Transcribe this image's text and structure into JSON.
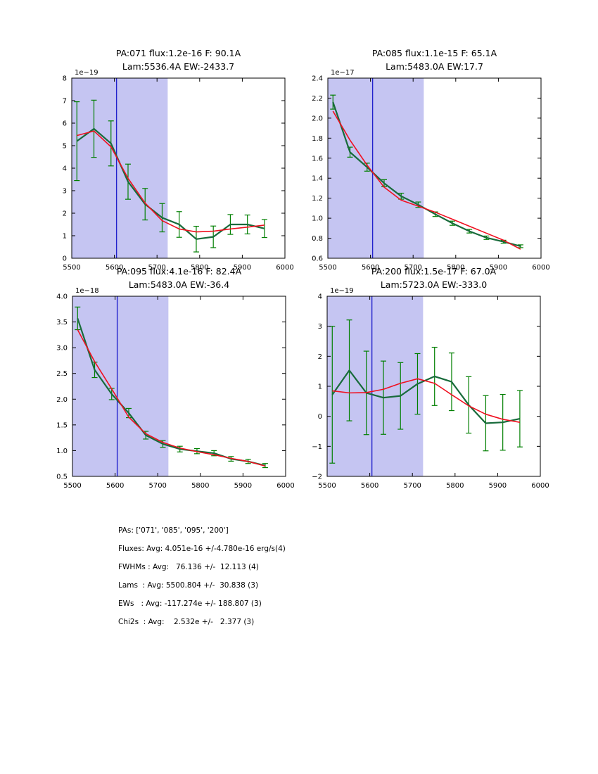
{
  "colors": {
    "background": "#ffffff",
    "band": "#c5c5f2",
    "vline": "#2222cc",
    "errorbar": "#007f00",
    "data_line": "#186b3b",
    "fit_line": "#f01020",
    "axis": "#000000"
  },
  "chart_data": [
    {
      "type": "line",
      "title_line1": "PA:071 flux:1.2e-16 F: 90.1A",
      "title_line2": "Lam:5536.4A EW:-2433.7",
      "offset_label": "1e−19",
      "xlim": [
        5500,
        6000
      ],
      "ylim": [
        0,
        8
      ],
      "band": [
        5500,
        5725
      ],
      "vline": 5605,
      "xticks": {
        "values": [
          5500,
          5600,
          5700,
          5800,
          5900,
          6000
        ],
        "labels": [
          "5500",
          "5600",
          "5700",
          "5800",
          "5900",
          "6000"
        ]
      },
      "yticks": {
        "values": [
          0,
          1,
          2,
          3,
          4,
          5,
          6,
          7,
          8
        ],
        "labels": [
          "0",
          "1",
          "2",
          "3",
          "4",
          "5",
          "6",
          "7",
          "8"
        ]
      },
      "x": [
        5512,
        5552,
        5592,
        5632,
        5672,
        5712,
        5752,
        5792,
        5832,
        5872,
        5912,
        5952
      ],
      "series": [
        {
          "name": "data",
          "values": [
            5.2,
            5.75,
            5.1,
            3.4,
            2.4,
            1.8,
            1.5,
            0.85,
            0.95,
            1.5,
            1.5,
            1.32
          ],
          "errors": [
            1.75,
            1.27,
            1.0,
            0.78,
            0.7,
            0.63,
            0.57,
            0.57,
            0.48,
            0.44,
            0.42,
            0.4
          ]
        },
        {
          "name": "fit",
          "values": [
            5.45,
            5.65,
            4.95,
            3.55,
            2.45,
            1.67,
            1.3,
            1.17,
            1.2,
            1.3,
            1.38,
            1.47
          ]
        }
      ]
    },
    {
      "type": "line",
      "title_line1": "PA:085 flux:1.1e-15 F: 65.1A",
      "title_line2": "Lam:5483.0A EW:17.7",
      "offset_label": "1e−17",
      "xlim": [
        5500,
        6000
      ],
      "ylim": [
        0.6,
        2.4
      ],
      "band": [
        5500,
        5725
      ],
      "vline": 5605,
      "xticks": {
        "values": [
          5500,
          5600,
          5700,
          5800,
          5900,
          6000
        ],
        "labels": [
          "5500",
          "5600",
          "5700",
          "5800",
          "5900",
          "6000"
        ]
      },
      "yticks": {
        "values": [
          0.6,
          0.8,
          1.0,
          1.2,
          1.4,
          1.6,
          1.8,
          2.0,
          2.2,
          2.4
        ],
        "labels": [
          "0.6",
          "0.8",
          "1.0",
          "1.2",
          "1.4",
          "1.6",
          "1.8",
          "2.0",
          "2.2",
          "2.4"
        ]
      },
      "x": [
        5512,
        5552,
        5592,
        5632,
        5672,
        5712,
        5752,
        5792,
        5832,
        5872,
        5912,
        5952
      ],
      "series": [
        {
          "name": "data",
          "values": [
            2.16,
            1.66,
            1.51,
            1.35,
            1.22,
            1.135,
            1.04,
            0.95,
            0.87,
            0.805,
            0.765,
            0.72
          ],
          "errors": [
            0.07,
            0.05,
            0.04,
            0.035,
            0.03,
            0.027,
            0.023,
            0.021,
            0.018,
            0.017,
            0.015,
            0.014
          ]
        },
        {
          "name": "fit",
          "values": [
            2.07,
            1.78,
            1.53,
            1.31,
            1.18,
            1.12,
            1.06,
            0.99,
            0.92,
            0.85,
            0.78,
            0.69
          ]
        }
      ]
    },
    {
      "type": "line",
      "title_line1": "PA:095 flux:4.1e-16 F: 82.4A",
      "title_line2": "Lam:5483.0A EW:-36.4",
      "offset_label": "1e−18",
      "xlim": [
        5500,
        6000
      ],
      "ylim": [
        0.5,
        4.0
      ],
      "band": [
        5500,
        5725
      ],
      "vline": 5605,
      "xticks": {
        "values": [
          5500,
          5600,
          5700,
          5800,
          5900,
          6000
        ],
        "labels": [
          "5500",
          "5600",
          "5700",
          "5800",
          "5900",
          "6000"
        ]
      },
      "yticks": {
        "values": [
          0.5,
          1.0,
          1.5,
          2.0,
          2.5,
          3.0,
          3.5,
          4.0
        ],
        "labels": [
          "0.5",
          "1.0",
          "1.5",
          "2.0",
          "2.5",
          "3.0",
          "3.5",
          "4.0"
        ]
      },
      "x": [
        5512,
        5552,
        5592,
        5632,
        5672,
        5712,
        5752,
        5792,
        5832,
        5872,
        5912,
        5952
      ],
      "series": [
        {
          "name": "data",
          "values": [
            3.57,
            2.57,
            2.1,
            1.73,
            1.3,
            1.13,
            1.03,
            0.99,
            0.95,
            0.84,
            0.79,
            0.71
          ],
          "errors": [
            0.22,
            0.15,
            0.11,
            0.09,
            0.075,
            0.065,
            0.055,
            0.05,
            0.05,
            0.045,
            0.04,
            0.04
          ]
        },
        {
          "name": "fit",
          "values": [
            3.35,
            2.73,
            2.2,
            1.65,
            1.33,
            1.16,
            1.05,
            0.98,
            0.92,
            0.85,
            0.79,
            0.7
          ]
        }
      ]
    },
    {
      "type": "line",
      "title_line1": "PA:200 flux:1.5e-17 F: 67.0A",
      "title_line2": "Lam:5723.0A EW:-333.0",
      "offset_label": "1e−19",
      "xlim": [
        5500,
        6000
      ],
      "ylim": [
        -2,
        4
      ],
      "band": [
        5500,
        5725
      ],
      "vline": 5605,
      "xticks": {
        "values": [
          5500,
          5600,
          5700,
          5800,
          5900,
          6000
        ],
        "labels": [
          "5500",
          "5600",
          "5700",
          "5800",
          "5900",
          "6000"
        ]
      },
      "yticks": {
        "values": [
          -2,
          -1,
          0,
          1,
          2,
          3,
          4
        ],
        "labels": [
          "−2",
          "−1",
          "0",
          "1",
          "2",
          "3",
          "4"
        ]
      },
      "x": [
        5512,
        5552,
        5592,
        5632,
        5672,
        5712,
        5752,
        5792,
        5832,
        5872,
        5912,
        5952
      ],
      "series": [
        {
          "name": "data",
          "values": [
            0.72,
            1.53,
            0.78,
            0.62,
            0.68,
            1.08,
            1.33,
            1.15,
            0.38,
            -0.23,
            -0.2,
            -0.08
          ],
          "errors": [
            2.28,
            1.68,
            1.39,
            1.22,
            1.11,
            1.01,
            0.97,
            0.96,
            0.94,
            0.92,
            0.93,
            0.94
          ]
        },
        {
          "name": "fit",
          "values": [
            0.85,
            0.78,
            0.79,
            0.9,
            1.1,
            1.25,
            1.1,
            0.72,
            0.35,
            0.07,
            -0.1,
            -0.2
          ]
        }
      ]
    }
  ],
  "summary": {
    "lines": [
      "PAs: ['071', '085', '095', '200']",
      "Fluxes: Avg: 4.051e-16 +/-4.780e-16 erg/s(4)",
      "FWHMs : Avg:   76.136 +/-  12.113 (4)",
      "Lams  : Avg: 5500.804 +/-  30.838 (3)",
      "EWs   : Avg: -117.274e +/- 188.807 (3)",
      "Chi2s  : Avg:    2.532e +/-   2.377 (3)"
    ]
  }
}
